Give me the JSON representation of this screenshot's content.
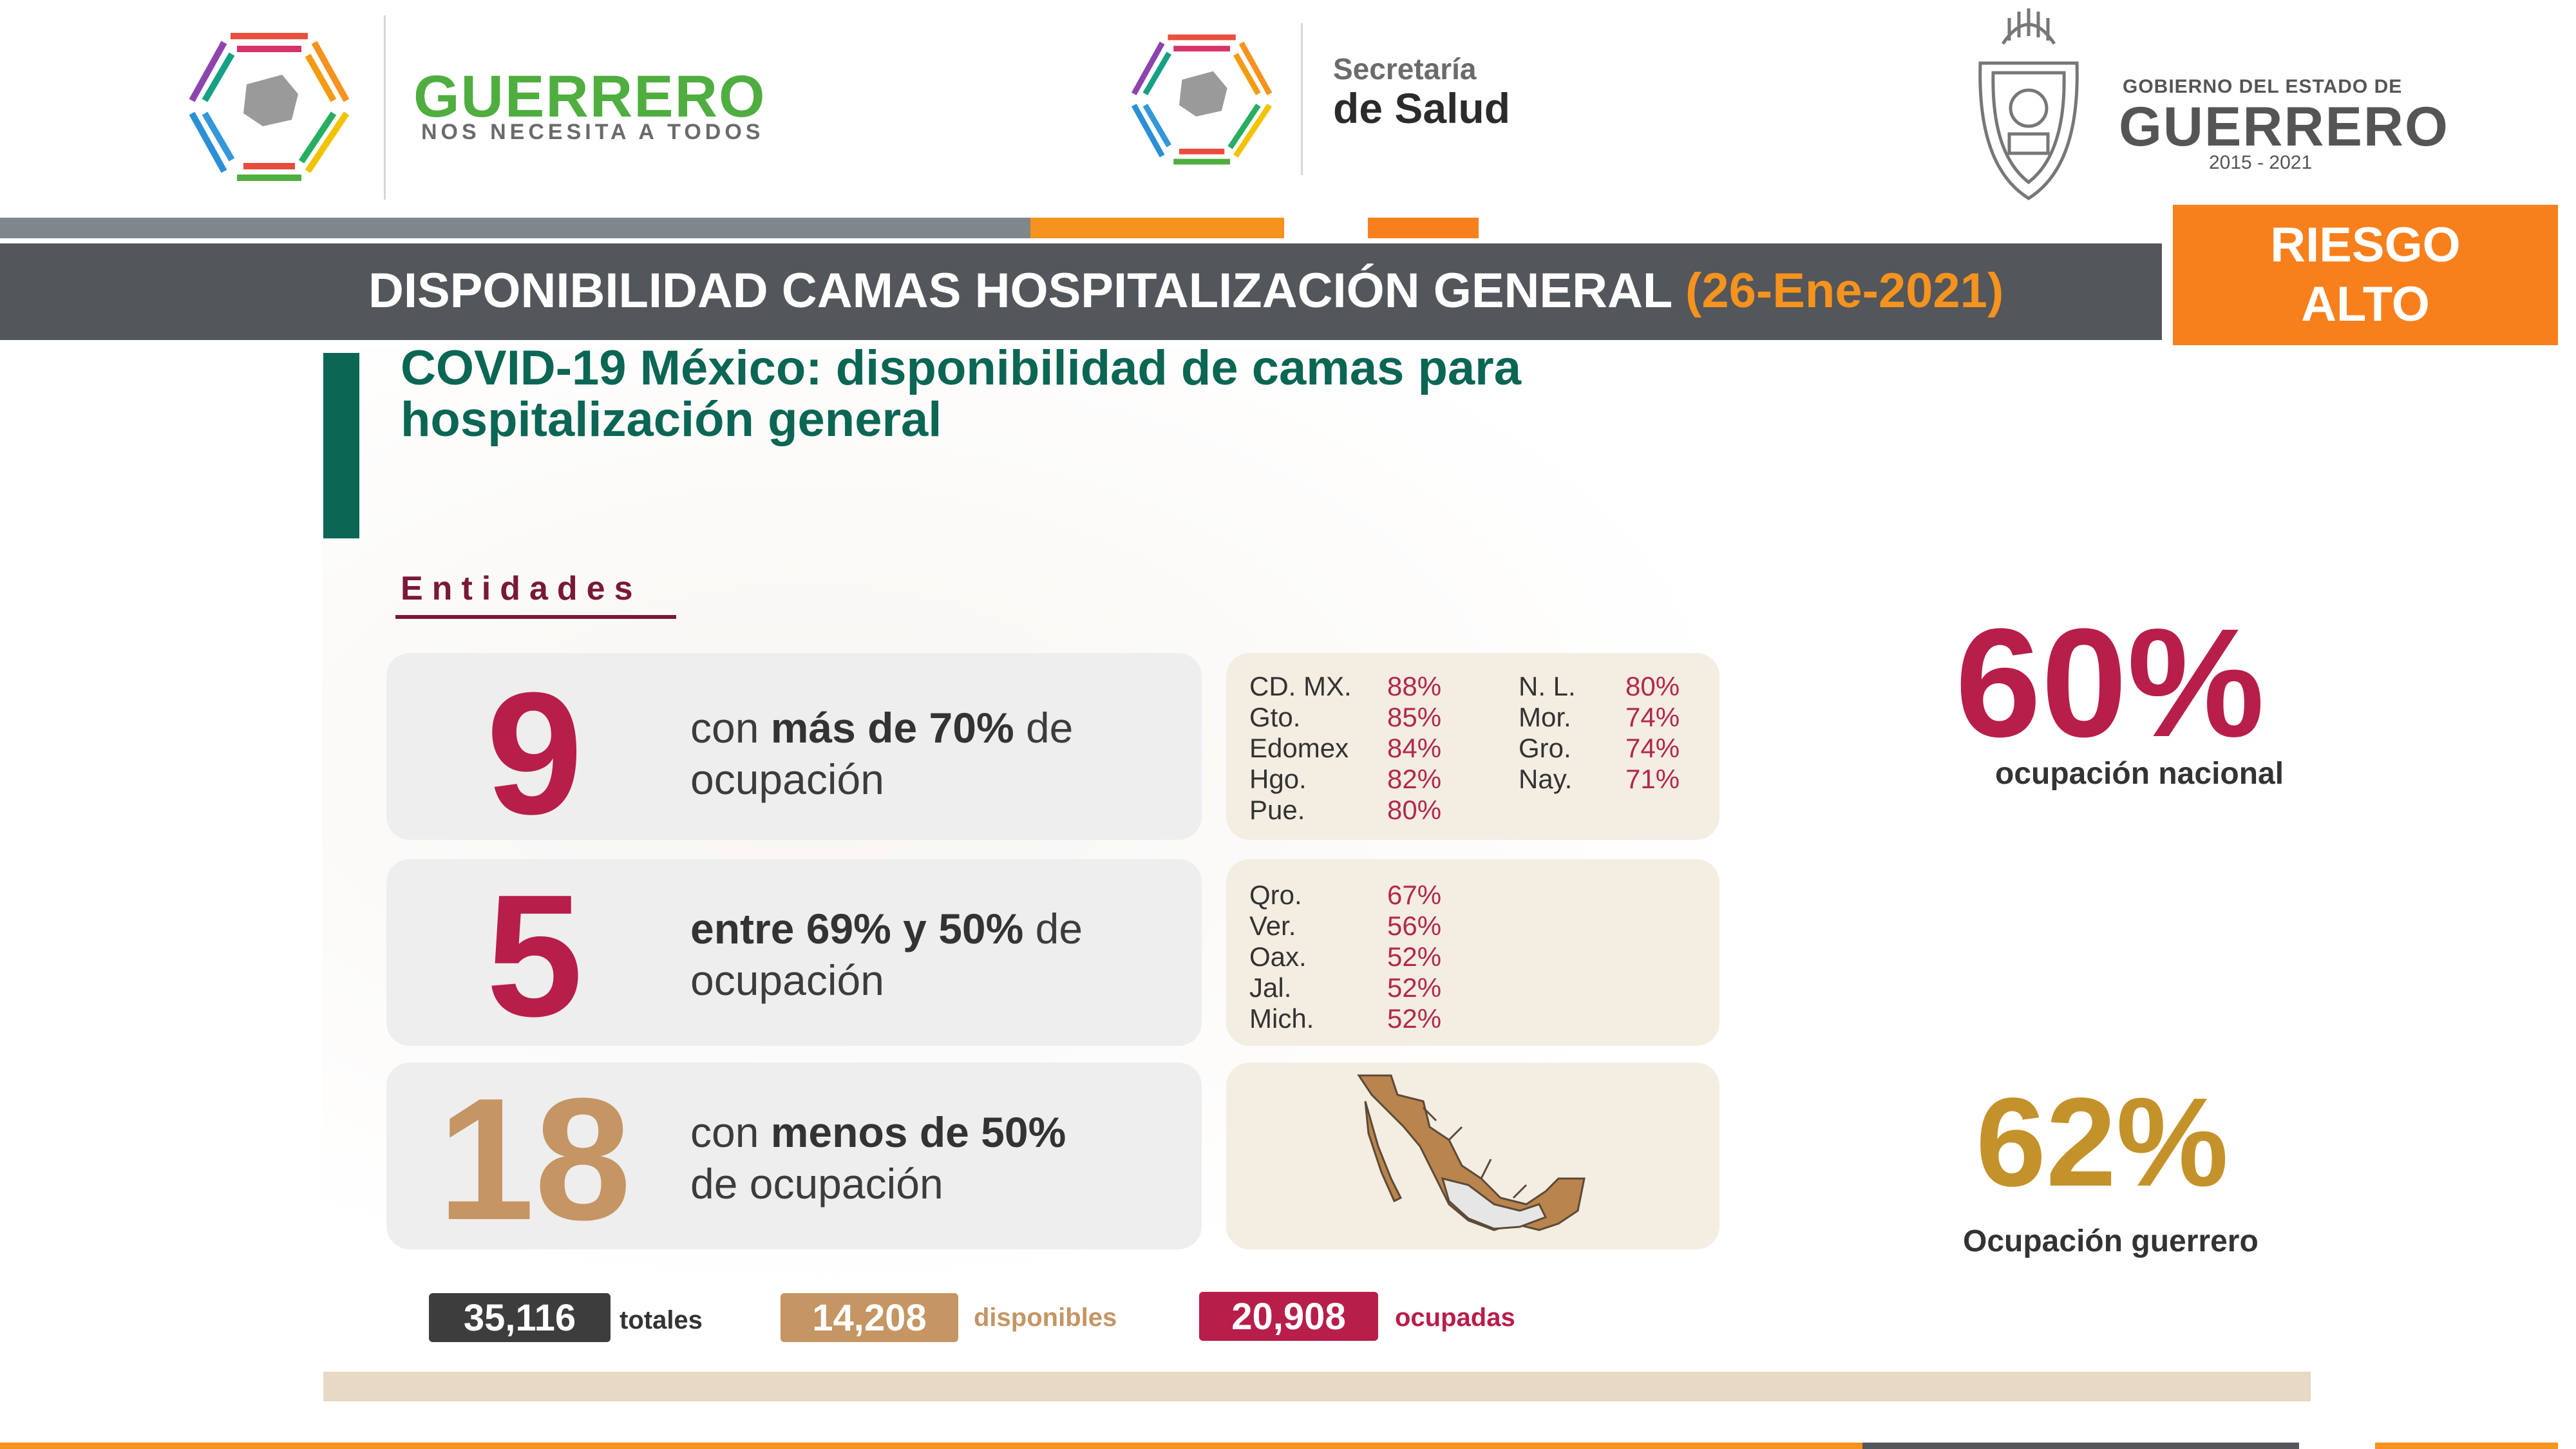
{
  "header": {
    "guerrero_logo": {
      "title": "GUERRERO",
      "subtitle": "NOS NECESITA A TODOS"
    },
    "salud_logo": {
      "line1": "Secretaría",
      "line2": "de Salud"
    },
    "gobierno_logo": {
      "line1": "GOBIERNO DEL ESTADO DE",
      "line2": "GUERRERO",
      "years": "2015 - 2021"
    }
  },
  "title_band": {
    "title": "DISPONIBILIDAD CAMAS HOSPITALIZACIÓN GENERAL",
    "date": "(26-Ene-2021)"
  },
  "risk_badge": {
    "line1": "RIESGO",
    "line2": "ALTO"
  },
  "subtitle": {
    "line1": "COVID-19 México: disponibilidad de camas para",
    "line2": "hospitalización general"
  },
  "entities_heading": "Entidades",
  "groups": [
    {
      "count": "9",
      "desc_pre": "con ",
      "desc_bold": "más de 70%",
      "desc_post": " de",
      "desc_line2": "ocupación",
      "states_left": [
        {
          "name": "CD. MX.",
          "pct": "88%"
        },
        {
          "name": "Gto.",
          "pct": "85%"
        },
        {
          "name": "Edomex",
          "pct": "84%"
        },
        {
          "name": "Hgo.",
          "pct": "82%"
        },
        {
          "name": "Pue.",
          "pct": "80%"
        }
      ],
      "states_right": [
        {
          "name": "N. L.",
          "pct": "80%"
        },
        {
          "name": "Mor.",
          "pct": "74%"
        },
        {
          "name": "Gro.",
          "pct": "74%"
        },
        {
          "name": "Nay.",
          "pct": "71%"
        }
      ]
    },
    {
      "count": "5",
      "desc_bold": "entre 69% y 50%",
      "desc_post": " de",
      "desc_line2": "ocupación",
      "states_left": [
        {
          "name": "Qro.",
          "pct": "67%"
        },
        {
          "name": "Ver.",
          "pct": "56%"
        },
        {
          "name": "Oax.",
          "pct": "52%"
        },
        {
          "name": "Jal.",
          "pct": "52%"
        },
        {
          "name": "Mich.",
          "pct": "52%"
        }
      ]
    },
    {
      "count": "18",
      "desc_pre": "con ",
      "desc_bold": "menos de 50%",
      "desc_line2": "de ocupación"
    }
  ],
  "national": {
    "value": "60%",
    "label": "ocupación nacional"
  },
  "guerrero": {
    "value": "62%",
    "label": "Ocupación guerrero"
  },
  "totals": [
    {
      "value": "35,116",
      "label": "totales"
    },
    {
      "value": "14,208",
      "label": "disponibles"
    },
    {
      "value": "20,908",
      "label": "ocupadas"
    }
  ],
  "colors": {
    "dark_gray": "#53565a",
    "orange": "#f6921e",
    "green": "#0b6654",
    "crimson": "#b2284f",
    "gold": "#c4922a",
    "tan": "#c59563",
    "wine": "#7a1838"
  }
}
